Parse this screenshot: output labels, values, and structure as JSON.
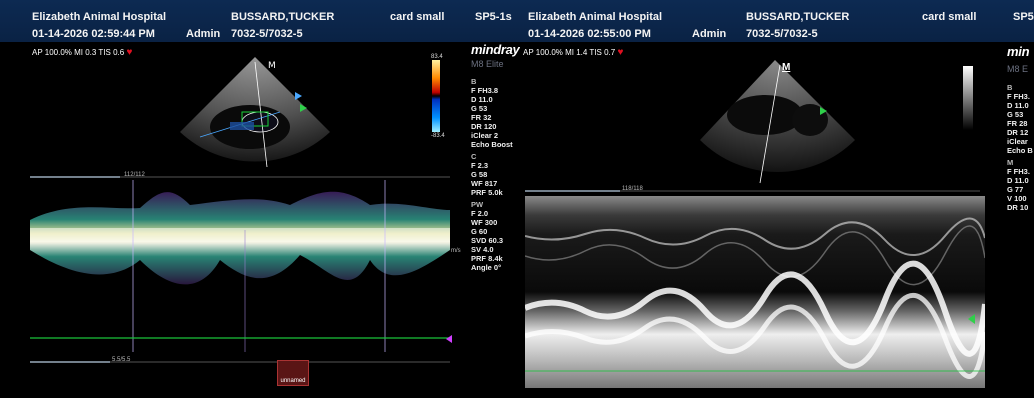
{
  "left": {
    "header": {
      "hospital": "Elizabeth Animal Hospital",
      "patient": "BUSSARD,TUCKER",
      "preset": "card small",
      "probe": "SP5-1s",
      "datetime": "01-14-2026 02:59:44 PM",
      "operator": "Admin",
      "patient_id": "7032-5/7032-5"
    },
    "status": "AP 100.0%  MI 0.3  TIS 0.6",
    "brand": "mindray",
    "model": "M8 Elite",
    "scale_labels": {
      "top": "83.4",
      "bottom": "-83.4"
    },
    "params": [
      {
        "section": "B",
        "items": [
          "F FH3.8",
          "D 11.0",
          "G 53",
          "FR 32",
          "DR 120",
          "iClear 2",
          "Echo Boost"
        ]
      },
      {
        "section": "C",
        "items": [
          "F 2.3",
          "G 58",
          "WF 817",
          "PRF 5.0k"
        ]
      },
      {
        "section": "PW",
        "items": [
          "F 2.0",
          "WF 300",
          "G 60",
          "SVD 60.3",
          "SV 4.0",
          "PRF 8.4k",
          "Angle 0°"
        ]
      }
    ],
    "time_label": "112/112",
    "bottom_label": "5.5/5.5",
    "doppler_unit": "m/s",
    "thumb_label": "unnamed"
  },
  "right": {
    "header": {
      "hospital": "Elizabeth Animal Hospital",
      "patient": "BUSSARD,TUCKER",
      "preset": "card small",
      "probe": "SP5",
      "datetime": "01-14-2026 02:55:00 PM",
      "operator": "Admin",
      "patient_id": "7032-5/7032-5"
    },
    "status": "AP 100.0%  MI 1.4  TIS 0.7",
    "brand": "min",
    "model": "M8 E",
    "marker": "M",
    "params": [
      {
        "section": "B",
        "items": [
          "F FH3.",
          "D 11.0",
          "G 53",
          "FR 28",
          "DR 12",
          "iClear",
          "Echo B"
        ]
      },
      {
        "section": "M",
        "items": [
          "F FH3.",
          "D 11.0",
          "G 77",
          "V 100",
          "DR 10"
        ]
      }
    ],
    "time_label": "118/118"
  },
  "colors": {
    "header_bg": "#0a2244",
    "heart": "#e01020",
    "baseline": "#19c23a",
    "marker": "#2fd04a"
  }
}
